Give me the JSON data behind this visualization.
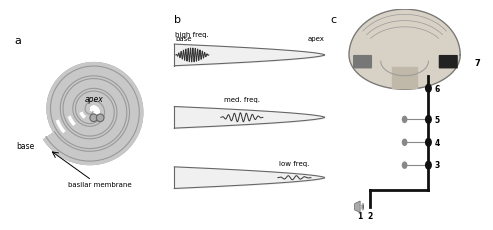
{
  "bg_color": "#ffffff",
  "panel_a_label": "a",
  "panel_b_label": "b",
  "panel_c_label": "c",
  "spiral_gray": "#c8c8c8",
  "spiral_outline": "#999999",
  "cochlea_text_apex": "apex",
  "cochlea_text_base": "base",
  "cochlea_text_membrane": "basilar membrane",
  "b_label_base": "base",
  "b_label_apex": "apex",
  "b_label_high": "high freq.",
  "b_label_med": "med. freq.",
  "b_label_low": "low freq.",
  "numbers": [
    "1",
    "2",
    "3",
    "4",
    "5",
    "6",
    "7"
  ],
  "node_color_dark": "#111111",
  "node_color_gray": "#888888",
  "line_color": "#111111",
  "membrane_fill": "#f0f0f0",
  "membrane_outline": "#666666",
  "wave_color": "#333333"
}
